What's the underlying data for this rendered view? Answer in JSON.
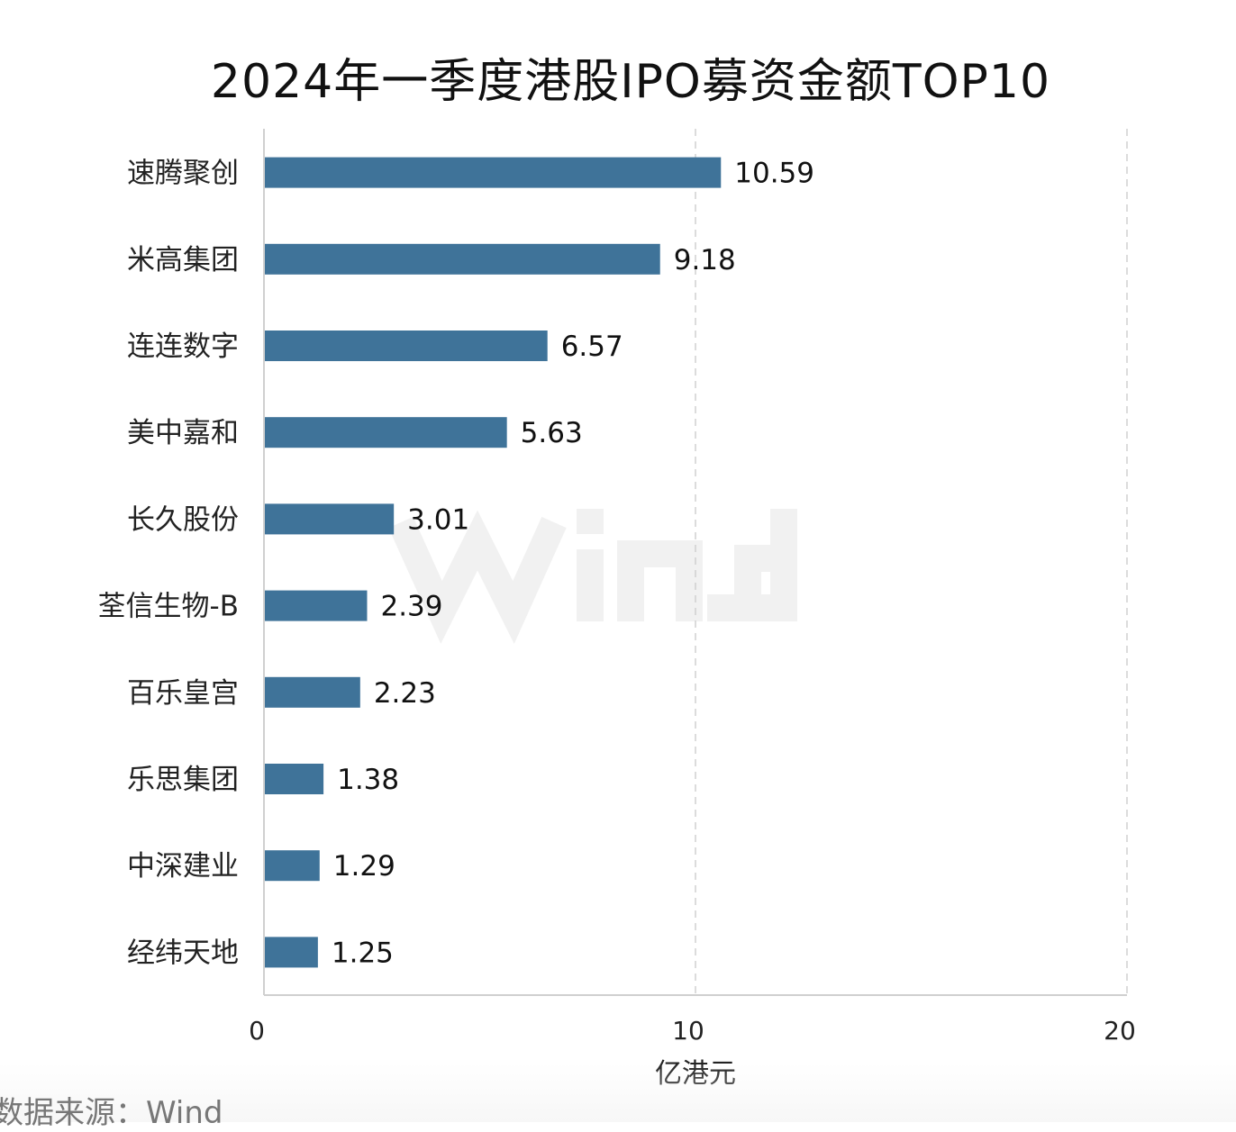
{
  "chart_data": {
    "type": "bar",
    "orientation": "horizontal",
    "title": "2024年一季度港股IPO募资金额TOP10",
    "categories": [
      "速腾聚创",
      "米高集团",
      "连连数字",
      "美中嘉和",
      "长久股份",
      "荃信生物-B",
      "百乐皇宫",
      "乐思集团",
      "中深建业",
      "经纬天地"
    ],
    "values": [
      10.59,
      9.18,
      6.57,
      5.63,
      3.01,
      2.39,
      2.23,
      1.38,
      1.29,
      1.25
    ],
    "value_labels": [
      "10.59",
      "9.18",
      "6.57",
      "5.63",
      "3.01",
      "2.39",
      "2.23",
      "1.38",
      "1.29",
      "1.25"
    ],
    "xlabel": "亿港元",
    "ylabel": "",
    "xlim": [
      0,
      20
    ],
    "xticks": [
      "0",
      "10",
      "20"
    ],
    "xtick_values": [
      0,
      10,
      20
    ],
    "grid": "vertical dashed",
    "bar_color": "#3f7399",
    "watermark": "Wind",
    "source": "数据来源：Wind"
  }
}
